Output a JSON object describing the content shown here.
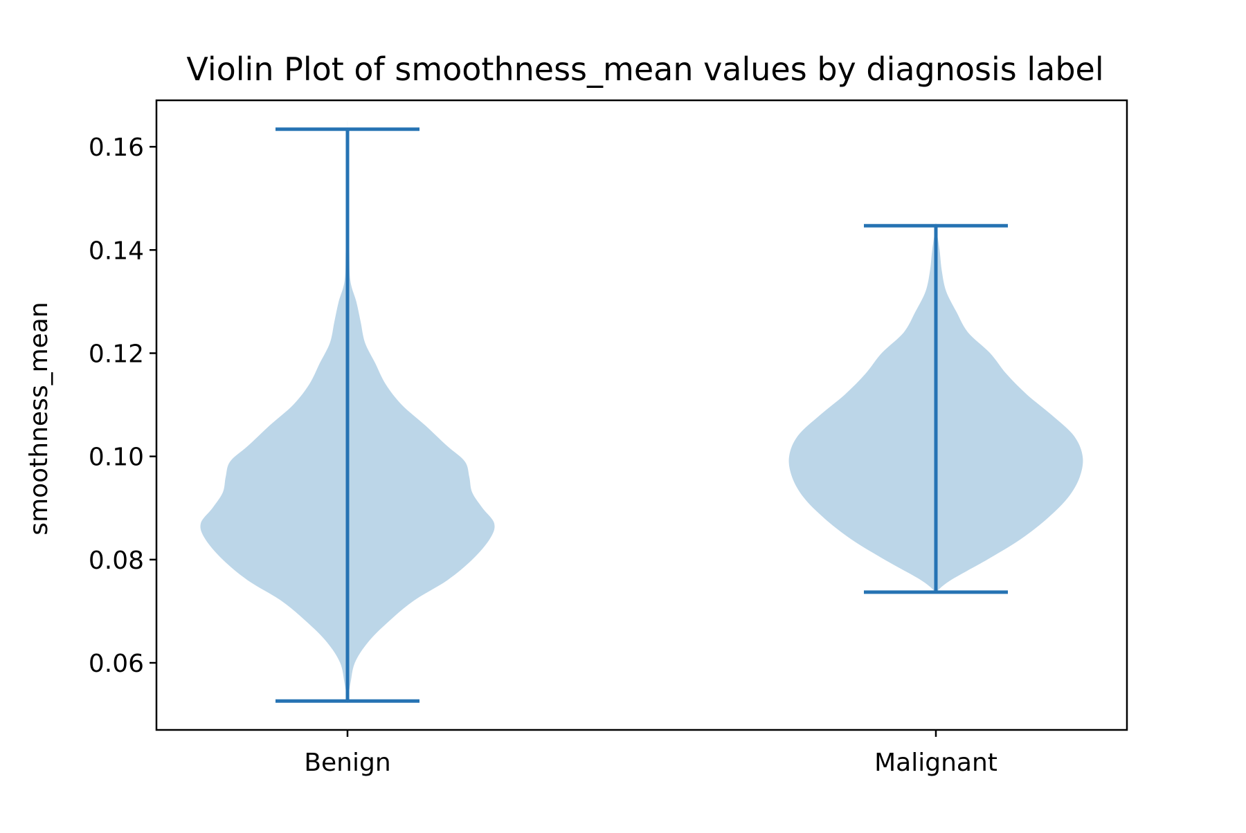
{
  "chart_data": {
    "type": "violin",
    "title": "Violin Plot of smoothness_mean values by diagnosis label",
    "xlabel": "",
    "ylabel": "smoothness_mean",
    "categories": [
      "Benign",
      "Malignant"
    ],
    "ylim": [
      0.047,
      0.169
    ],
    "yticks": [
      0.06,
      0.08,
      0.1,
      0.12,
      0.14,
      0.16
    ],
    "ytick_labels": [
      "0.06",
      "0.08",
      "0.10",
      "0.12",
      "0.14",
      "0.16"
    ],
    "grid": false,
    "colors": {
      "body": "#bcd6e8",
      "lines": "#2673b3"
    },
    "violins": [
      {
        "category": "Benign",
        "min": 0.0526,
        "max": 0.1634,
        "density": [
          [
            0.0526,
            0.0
          ],
          [
            0.056,
            0.02
          ],
          [
            0.06,
            0.05
          ],
          [
            0.064,
            0.14
          ],
          [
            0.068,
            0.28
          ],
          [
            0.072,
            0.45
          ],
          [
            0.076,
            0.68
          ],
          [
            0.08,
            0.85
          ],
          [
            0.084,
            0.97
          ],
          [
            0.087,
            1.0
          ],
          [
            0.09,
            0.92
          ],
          [
            0.093,
            0.85
          ],
          [
            0.096,
            0.83
          ],
          [
            0.099,
            0.8
          ],
          [
            0.102,
            0.68
          ],
          [
            0.106,
            0.53
          ],
          [
            0.11,
            0.37
          ],
          [
            0.114,
            0.26
          ],
          [
            0.118,
            0.19
          ],
          [
            0.122,
            0.12
          ],
          [
            0.126,
            0.09
          ],
          [
            0.13,
            0.06
          ],
          [
            0.134,
            0.02
          ],
          [
            0.14,
            0.012
          ],
          [
            0.15,
            0.006
          ],
          [
            0.1634,
            0.0
          ]
        ]
      },
      {
        "category": "Malignant",
        "min": 0.0737,
        "max": 0.1447,
        "density": [
          [
            0.0737,
            0.0
          ],
          [
            0.076,
            0.1
          ],
          [
            0.08,
            0.35
          ],
          [
            0.084,
            0.58
          ],
          [
            0.088,
            0.76
          ],
          [
            0.092,
            0.9
          ],
          [
            0.096,
            0.98
          ],
          [
            0.1,
            1.0
          ],
          [
            0.104,
            0.94
          ],
          [
            0.108,
            0.79
          ],
          [
            0.112,
            0.62
          ],
          [
            0.116,
            0.48
          ],
          [
            0.12,
            0.37
          ],
          [
            0.124,
            0.22
          ],
          [
            0.128,
            0.14
          ],
          [
            0.132,
            0.07
          ],
          [
            0.136,
            0.04
          ],
          [
            0.14,
            0.025
          ],
          [
            0.1447,
            0.0
          ]
        ]
      }
    ]
  }
}
